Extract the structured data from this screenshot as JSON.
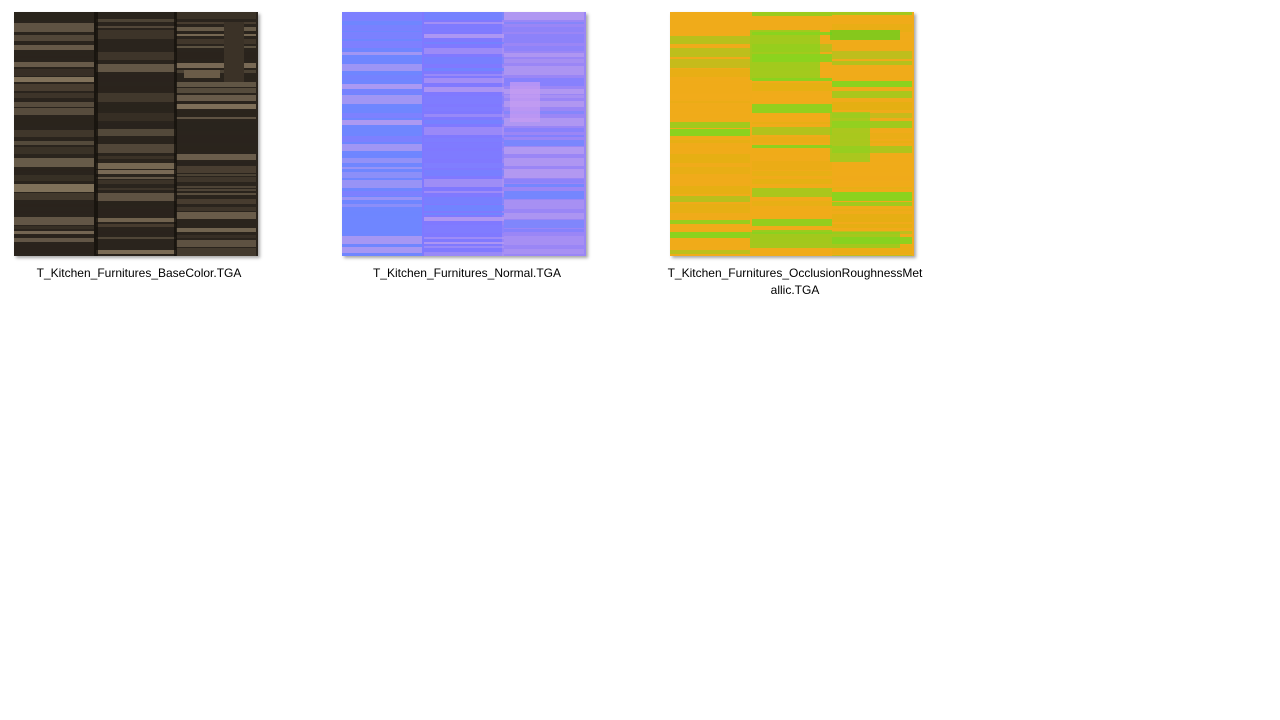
{
  "files": [
    {
      "name": "T_Kitchen_Furnitures_BaseColor.TGA",
      "thumbnail": "basecolor-texture",
      "colors": {
        "base": "#2a241d",
        "light": "#8a7a62",
        "mid": "#4d4234"
      }
    },
    {
      "name": "T_Kitchen_Furnitures_Normal.TGA",
      "thumbnail": "normal-map-texture",
      "colors": {
        "base": "#7f7fff",
        "light": "#b69cf0",
        "mid": "#6f86ff"
      }
    },
    {
      "name": "T_Kitchen_Furnitures_OcclusionRoughnessMetallic.TGA",
      "thumbnail": "orm-texture",
      "colors": {
        "base": "#f0ab1a",
        "light": "#7fd61f",
        "mid": "#e3b012"
      }
    }
  ]
}
